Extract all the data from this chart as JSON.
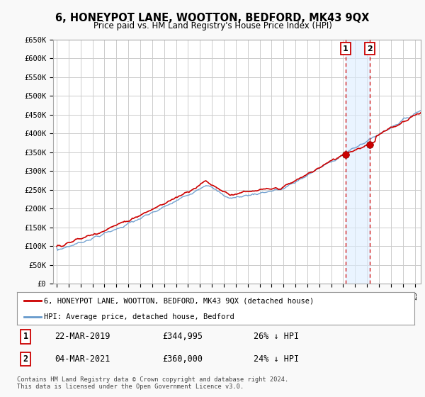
{
  "title": "6, HONEYPOT LANE, WOOTTON, BEDFORD, MK43 9QX",
  "subtitle": "Price paid vs. HM Land Registry's House Price Index (HPI)",
  "legend_label_red": "6, HONEYPOT LANE, WOOTTON, BEDFORD, MK43 9QX (detached house)",
  "legend_label_blue": "HPI: Average price, detached house, Bedford",
  "annotation1_date": "22-MAR-2019",
  "annotation1_price": "£344,995",
  "annotation1_hpi": "26% ↓ HPI",
  "annotation2_date": "04-MAR-2021",
  "annotation2_price": "£360,000",
  "annotation2_hpi": "24% ↓ HPI",
  "footer": "Contains HM Land Registry data © Crown copyright and database right 2024.\nThis data is licensed under the Open Government Licence v3.0.",
  "ylim": [
    0,
    650000
  ],
  "yticks": [
    0,
    50000,
    100000,
    150000,
    200000,
    250000,
    300000,
    350000,
    400000,
    450000,
    500000,
    550000,
    600000,
    650000
  ],
  "background_color": "#f9f9f9",
  "plot_bg_color": "#ffffff",
  "grid_color": "#cccccc",
  "red_color": "#cc0000",
  "blue_color": "#6699cc",
  "vline_color": "#cc0000",
  "shade_color": "#ddeeff",
  "annotation_box_color": "#cc0000",
  "date1_x": 2019.2,
  "date2_x": 2021.2,
  "xlim_start": 1994.7,
  "xlim_end": 2025.5
}
